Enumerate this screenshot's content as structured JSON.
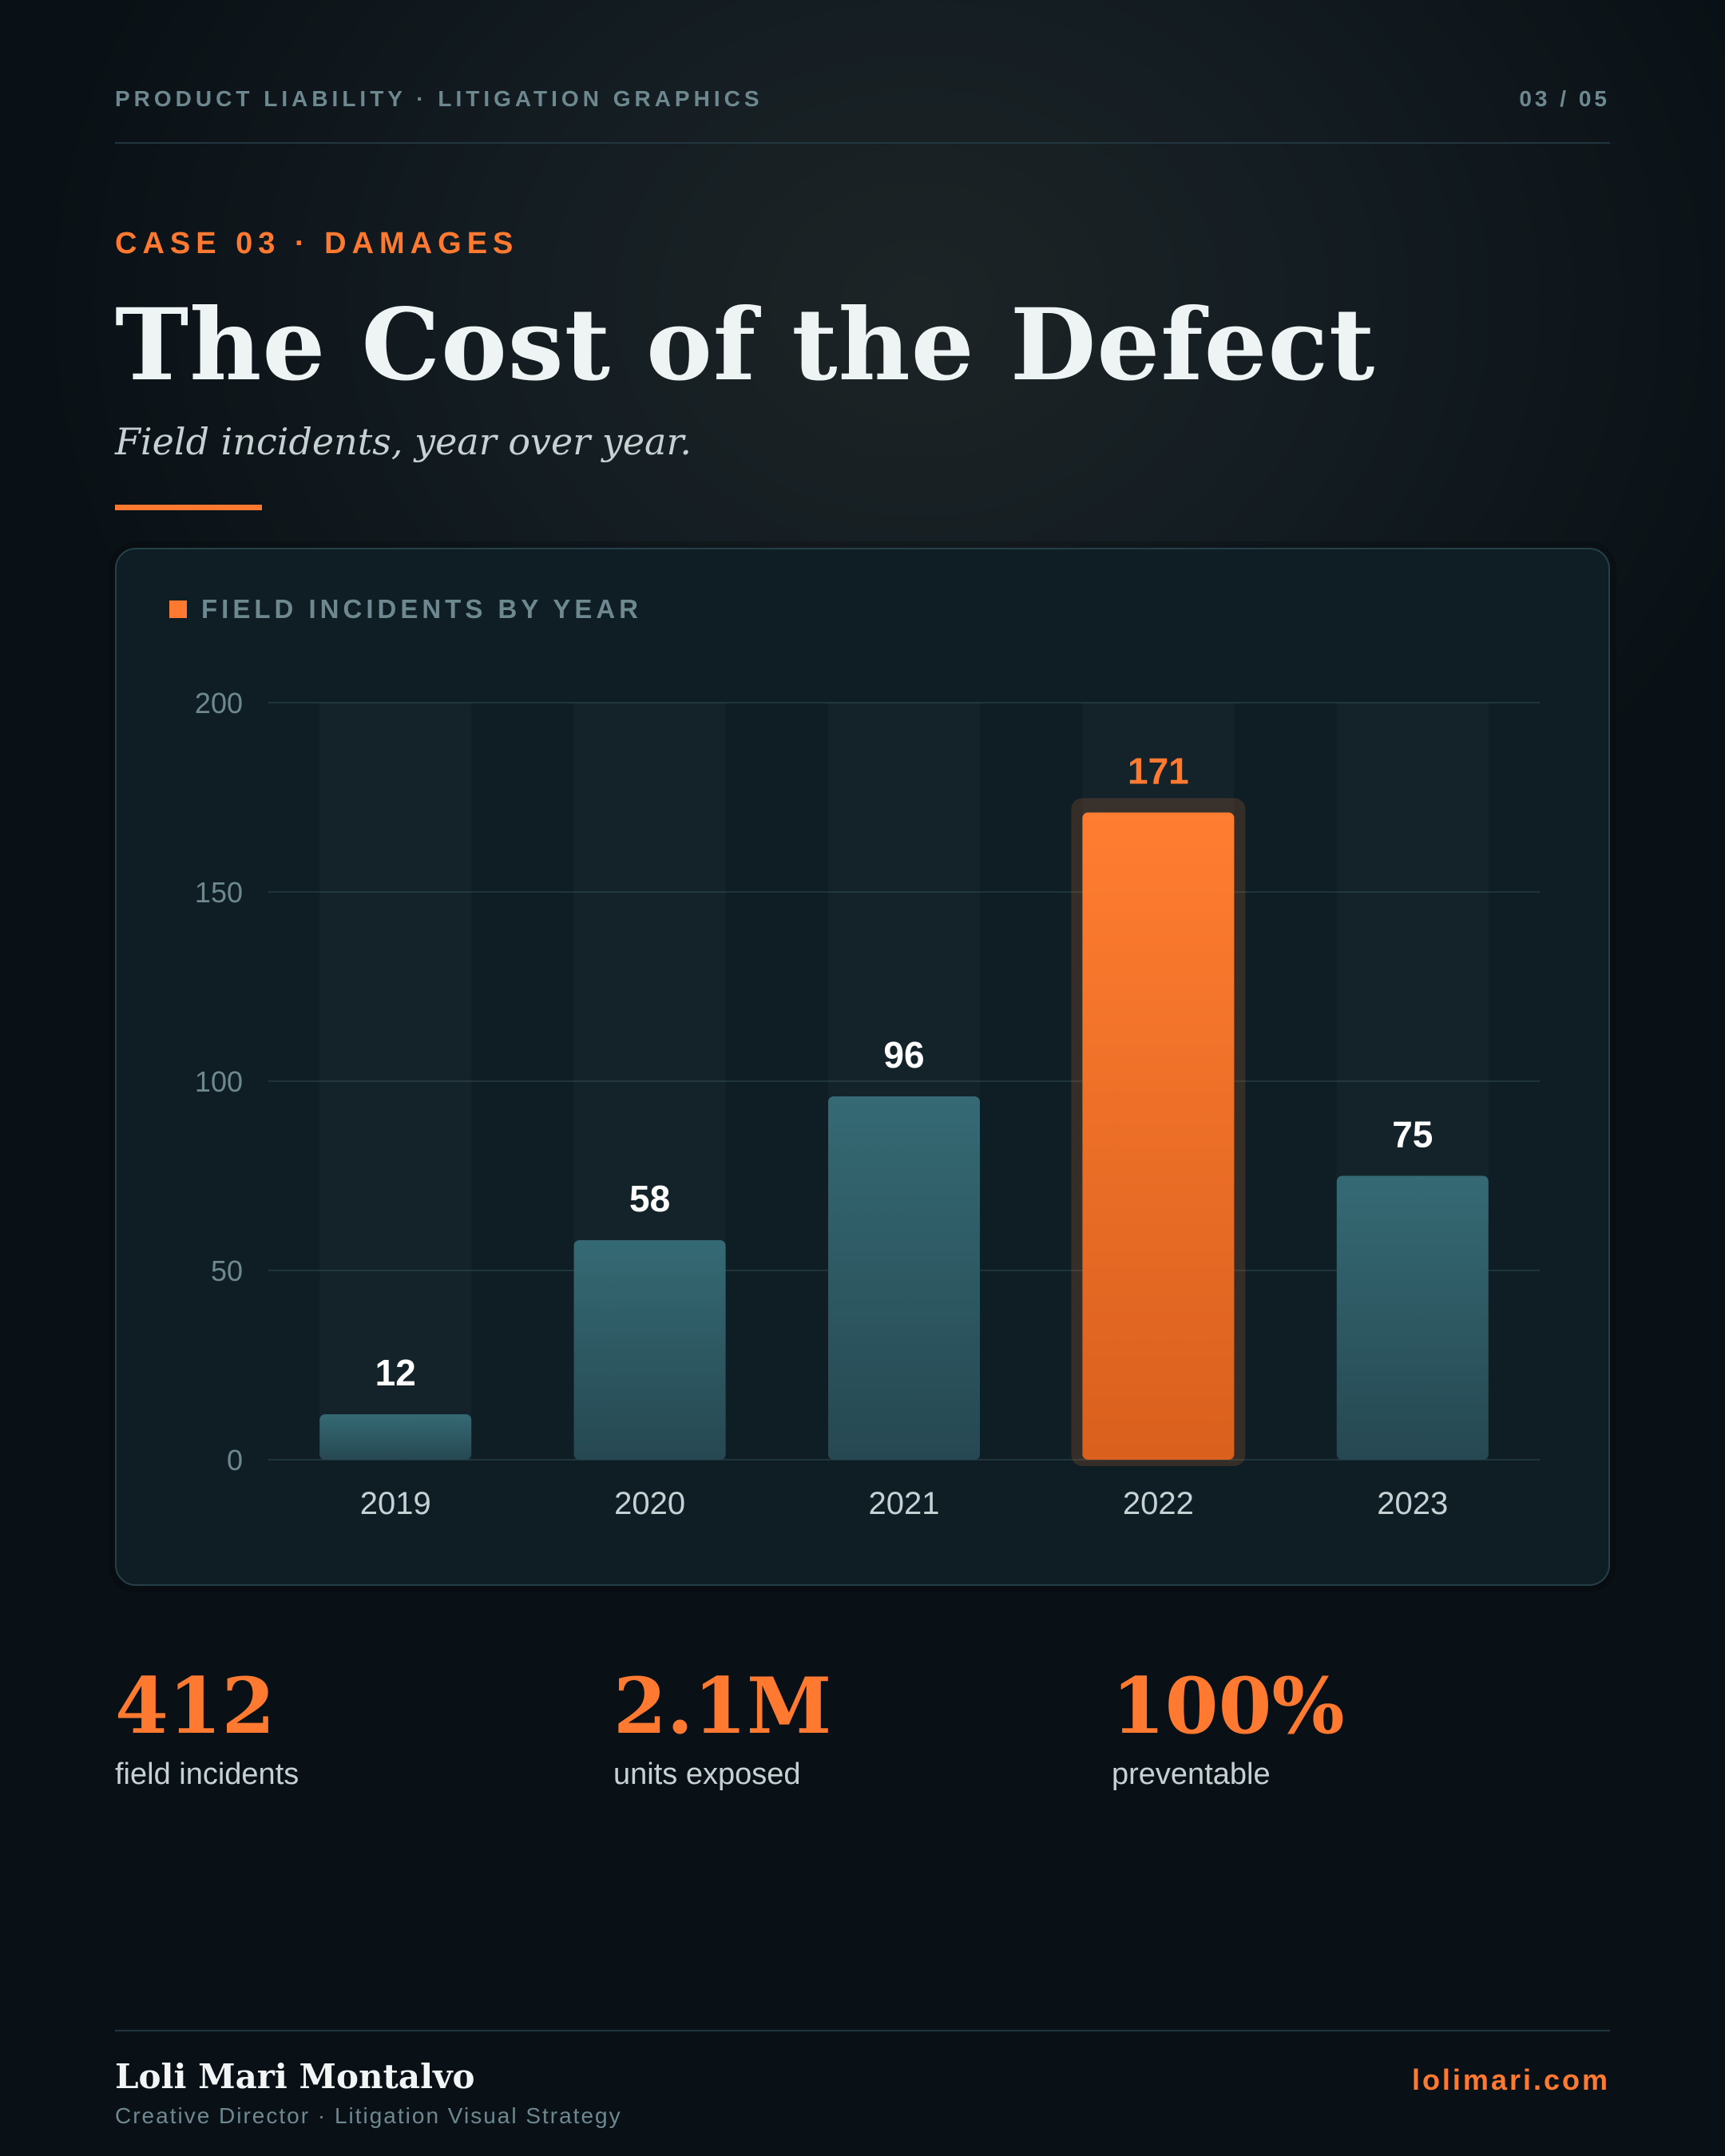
{
  "header": {
    "topline": "PRODUCT LIABILITY · LITIGATION GRAPHICS",
    "page_number": "03 / 05"
  },
  "intro": {
    "kicker": "CASE 03 · DAMAGES",
    "title": "The Cost of the Defect",
    "subtitle": "Field incidents, year over year."
  },
  "chart_data": {
    "type": "bar",
    "title": "FIELD INCIDENTS BY YEAR",
    "categories": [
      "2019",
      "2020",
      "2021",
      "2022",
      "2023"
    ],
    "values": [
      12,
      58,
      96,
      171,
      75
    ],
    "highlight_index": 3,
    "ylim": [
      0,
      200
    ],
    "yticks": [
      0,
      50,
      100,
      150,
      200
    ],
    "xlabel": "",
    "ylabel": "",
    "grid": true,
    "colors": {
      "bar": "#2f5a64",
      "highlight": "#ff7a30"
    }
  },
  "stats": [
    {
      "value": "412",
      "label": "field incidents"
    },
    {
      "value": "2.1M",
      "label": "units exposed"
    },
    {
      "value": "100%",
      "label": "preventable"
    }
  ],
  "footer": {
    "name": "Loli Mari Montalvo",
    "role": "Creative Director · Litigation Visual Strategy",
    "site": "lolimari.com"
  }
}
